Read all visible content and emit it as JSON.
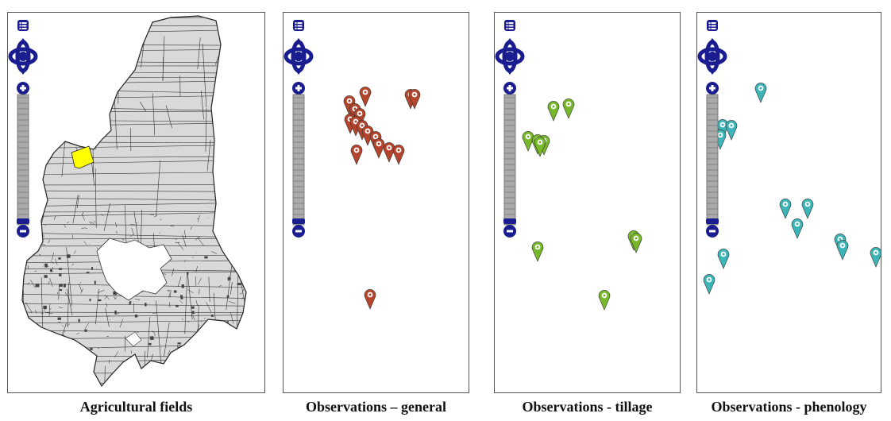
{
  "panels": [
    {
      "id": "fields",
      "caption": "Agricultural  fields"
    },
    {
      "id": "general",
      "caption": "Observations – general",
      "marker_color": "#b5442c"
    },
    {
      "id": "tillage",
      "caption": "Observations - tillage",
      "marker_color": "#76b82a"
    },
    {
      "id": "phenology",
      "caption": "Observations - phenology",
      "marker_color": "#3bb5b8"
    }
  ],
  "controls": {
    "layer_switcher_icon": "layers-list-icon",
    "pan_icon": "pan-arrows-icon",
    "zoom_in_icon": "plus-icon",
    "zoom_out_icon": "minus-icon",
    "control_color": "#1a1d8f",
    "slider_color": "#aaaaaa"
  },
  "colors": {
    "field_fill": "#d9d9d9",
    "field_line": "#222222",
    "highlight": "#ffff00"
  }
}
